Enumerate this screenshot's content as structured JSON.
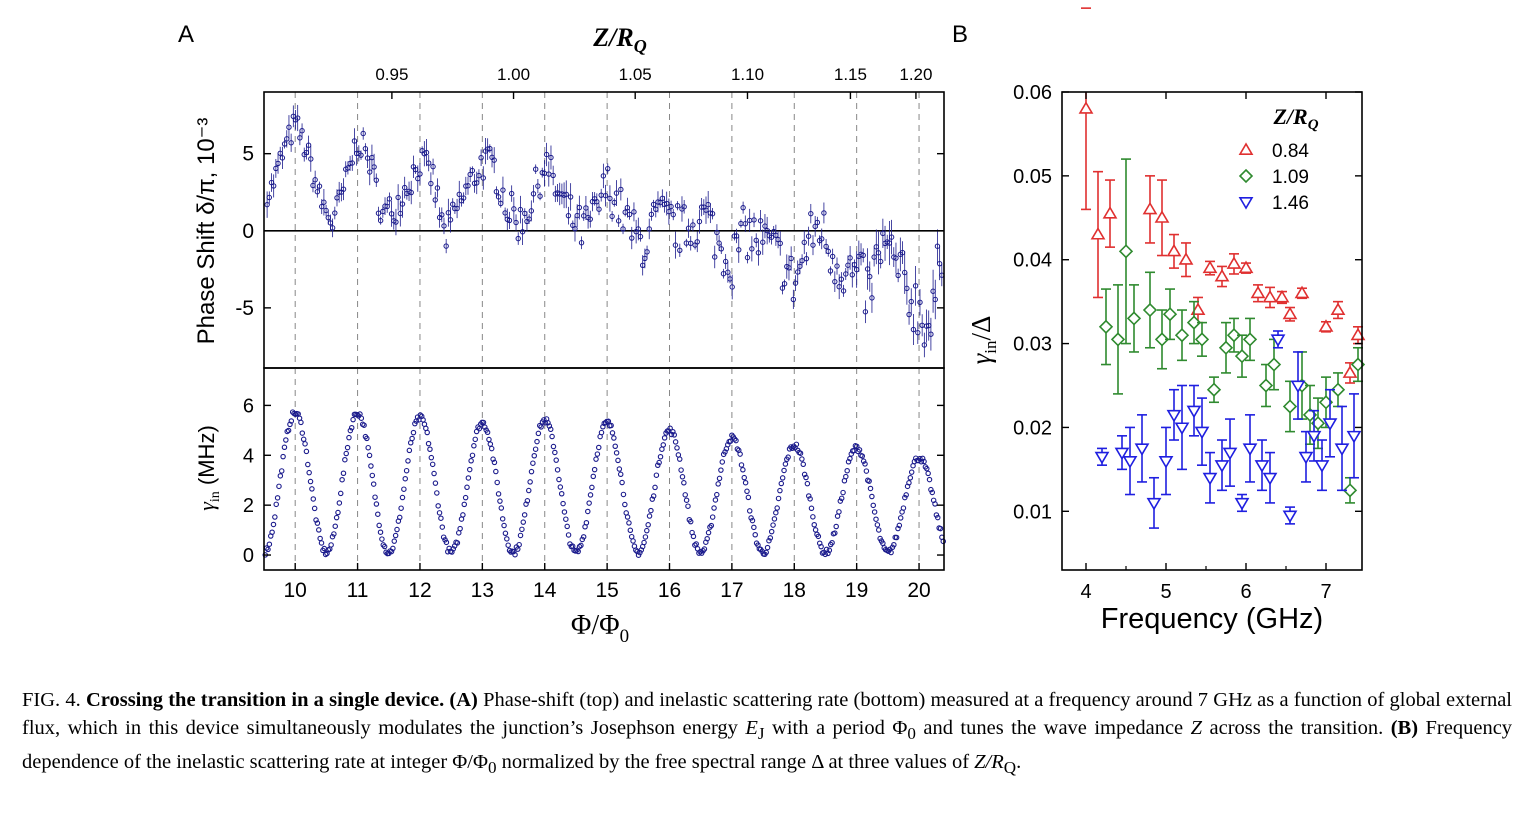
{
  "panels": {
    "a_letter": "A",
    "b_letter": "B"
  },
  "colors": {
    "navy": "#1a1a8c",
    "red": "#e03030",
    "green": "#2f8a2f",
    "blue": "#1f1fe0",
    "grid": "#888888"
  },
  "chart_data": [
    {
      "id": "A-top",
      "type": "scatter",
      "xlabel": "Φ/Φ0",
      "ylabel": "Phase Shift δ/π, 10⁻³",
      "xlim": [
        9.5,
        20.4
      ],
      "ylim": [
        -8.9,
        9.0
      ],
      "yticks": [
        -5,
        0,
        5
      ],
      "yticklabels": [
        "-5",
        "0",
        "5"
      ],
      "top_axis_label": "Z/RQ",
      "top_ticks": [
        {
          "flux": 11.55,
          "label": "0.95"
        },
        {
          "flux": 13.5,
          "label": "1.00"
        },
        {
          "flux": 15.45,
          "label": "1.05"
        },
        {
          "flux": 17.25,
          "label": "1.10"
        },
        {
          "flux": 18.9,
          "label": "1.15"
        },
        {
          "flux": 19.95,
          "label": "1.20"
        }
      ],
      "vlines": [
        10,
        11,
        12,
        13,
        14,
        15,
        16,
        17,
        18,
        19,
        20
      ],
      "series": [
        {
          "color": "#1a1a8c",
          "marker": "circle",
          "x": [
            9.6,
            9.8,
            10.0,
            10.2,
            10.4,
            10.6,
            10.8,
            11.0,
            11.2,
            11.4,
            11.6,
            11.8,
            12.0,
            12.2,
            12.4,
            12.6,
            12.8,
            13.0,
            13.2,
            13.4,
            13.6,
            13.8,
            14.0,
            14.2,
            14.4,
            14.6,
            14.8,
            15.0,
            15.2,
            15.4,
            15.6,
            15.8,
            16.0,
            16.2,
            16.4,
            16.6,
            16.8,
            17.0,
            17.2,
            17.4,
            17.6,
            17.8,
            18.0,
            18.2,
            18.4,
            18.6,
            18.8,
            19.0,
            19.2,
            19.4,
            19.6,
            19.8,
            20.0,
            20.2,
            20.35
          ],
          "y": [
            2.5,
            5.0,
            7.0,
            5.0,
            2.0,
            0.5,
            3.0,
            6.0,
            4.5,
            1.0,
            1.5,
            3.0,
            4.5,
            3.5,
            -0.5,
            1.5,
            3.0,
            4.5,
            4.0,
            1.5,
            0.5,
            2.0,
            4.5,
            2.5,
            1.0,
            0.0,
            1.0,
            3.0,
            1.5,
            0.0,
            -1.0,
            1.0,
            0.5,
            0.0,
            0.5,
            1.0,
            -1.0,
            -2.0,
            0.0,
            -0.5,
            -1.0,
            -2.0,
            -3.5,
            -1.0,
            0.5,
            -1.5,
            -2.5,
            -3.0,
            -4.0,
            -1.0,
            -2.0,
            -4.0,
            -5.0,
            -6.5,
            -1.0
          ]
        }
      ]
    },
    {
      "id": "A-bottom",
      "type": "scatter",
      "xlabel": "Φ/Φ0",
      "ylabel": "γin (MHz)",
      "xlim": [
        9.5,
        20.4
      ],
      "ylim": [
        -0.6,
        7.5
      ],
      "xticks": [
        10,
        11,
        12,
        13,
        14,
        15,
        16,
        17,
        18,
        19,
        20
      ],
      "yticks": [
        0,
        2,
        4,
        6
      ],
      "yticklabels": [
        "0",
        "2",
        "4",
        "6"
      ],
      "peaks": [
        {
          "flux": 10,
          "value": 5.7
        },
        {
          "flux": 11,
          "value": 5.7
        },
        {
          "flux": 12,
          "value": 5.5
        },
        {
          "flux": 13,
          "value": 5.3
        },
        {
          "flux": 14,
          "value": 5.4
        },
        {
          "flux": 15,
          "value": 5.3
        },
        {
          "flux": 16,
          "value": 5.0
        },
        {
          "flux": 17,
          "value": 4.7
        },
        {
          "flux": 18,
          "value": 4.4
        },
        {
          "flux": 19,
          "value": 4.3
        },
        {
          "flux": 20,
          "value": 3.9
        }
      ],
      "minimum_value": 0.1
    },
    {
      "id": "B",
      "type": "scatter",
      "xlabel": "Frequency (GHz)",
      "ylabel": "γin/Δ",
      "xlim": [
        3.7,
        7.45
      ],
      "ylim": [
        0.003,
        0.06
      ],
      "xticks": [
        4,
        5,
        6,
        7
      ],
      "xticklabels": [
        "4",
        "5",
        "6",
        "7"
      ],
      "yticks": [
        0.01,
        0.02,
        0.03,
        0.04,
        0.05,
        0.06
      ],
      "yticklabels": [
        "0.01",
        "0.02",
        "0.03",
        "0.04",
        "0.05",
        "0.06"
      ],
      "legend_title": "Z/RQ",
      "legend_placement": "top-right",
      "series": [
        {
          "name": "0.84",
          "color": "#e03030",
          "marker": "triangle-up",
          "x": [
            4.0,
            4.15,
            4.3,
            4.8,
            4.95,
            5.1,
            5.25,
            5.4,
            5.55,
            5.7,
            5.85,
            6.0,
            6.15,
            6.3,
            6.45,
            6.55,
            6.7,
            7.0,
            7.15,
            7.3,
            7.4
          ],
          "y": [
            0.058,
            0.043,
            0.0455,
            0.046,
            0.045,
            0.041,
            0.04,
            0.034,
            0.039,
            0.038,
            0.0395,
            0.039,
            0.036,
            0.0355,
            0.0355,
            0.0335,
            0.036,
            0.032,
            0.034,
            0.0265,
            0.031
          ],
          "err": [
            0.012,
            0.0075,
            0.004,
            0.004,
            0.0045,
            0.002,
            0.002,
            0.0015,
            0.0008,
            0.0012,
            0.0012,
            0.0006,
            0.001,
            0.0012,
            0.0007,
            0.0008,
            0.0006,
            0.0006,
            0.001,
            0.0012,
            0.001
          ]
        },
        {
          "name": "1.09",
          "color": "#2f8a2f",
          "marker": "diamond",
          "x": [
            4.25,
            4.4,
            4.5,
            4.6,
            4.8,
            4.95,
            5.05,
            5.2,
            5.35,
            5.45,
            5.6,
            5.75,
            5.85,
            5.95,
            6.05,
            6.25,
            6.35,
            6.55,
            6.7,
            6.8,
            6.9,
            7.0,
            7.15,
            7.3,
            7.4
          ],
          "y": [
            0.032,
            0.0305,
            0.041,
            0.033,
            0.034,
            0.0305,
            0.0335,
            0.031,
            0.0325,
            0.0305,
            0.0245,
            0.0295,
            0.031,
            0.0285,
            0.0305,
            0.025,
            0.0275,
            0.0225,
            0.025,
            0.0215,
            0.0205,
            0.023,
            0.0245,
            0.0125,
            0.0275
          ],
          "err": [
            0.0045,
            0.0065,
            0.011,
            0.004,
            0.0045,
            0.0035,
            0.003,
            0.003,
            0.0025,
            0.002,
            0.0015,
            0.003,
            0.002,
            0.0025,
            0.0025,
            0.0025,
            0.003,
            0.003,
            0.004,
            0.0035,
            0.003,
            0.003,
            0.002,
            0.0015,
            0.002
          ]
        },
        {
          "name": "1.46",
          "color": "#1f1fe0",
          "marker": "triangle-down",
          "x": [
            4.2,
            4.45,
            4.55,
            4.7,
            4.85,
            5.0,
            5.1,
            5.2,
            5.35,
            5.45,
            5.55,
            5.7,
            5.8,
            5.95,
            6.05,
            6.2,
            6.3,
            6.4,
            6.55,
            6.65,
            6.75,
            6.85,
            6.95,
            7.05,
            7.2,
            7.35
          ],
          "y": [
            0.0165,
            0.017,
            0.016,
            0.0175,
            0.011,
            0.016,
            0.0215,
            0.02,
            0.022,
            0.0195,
            0.014,
            0.0155,
            0.017,
            0.011,
            0.0175,
            0.0155,
            0.014,
            0.0305,
            0.0095,
            0.025,
            0.0165,
            0.019,
            0.0155,
            0.0205,
            0.0175,
            0.019
          ],
          "err": [
            0.001,
            0.002,
            0.004,
            0.004,
            0.003,
            0.004,
            0.003,
            0.005,
            0.003,
            0.004,
            0.003,
            0.003,
            0.004,
            0.001,
            0.004,
            0.003,
            0.003,
            0.001,
            0.001,
            0.004,
            0.003,
            0.003,
            0.003,
            0.004,
            0.005,
            0.005
          ]
        }
      ]
    }
  ],
  "caption": {
    "fig": "FIG. 4.",
    "title": "Crossing the transition in a single device.",
    "a_ref": "(A)",
    "part1": "Phase-shift (top) and inelastic scattering rate (bottom) measured at a frequency around 7 GHz as a function of global external flux, which in this device simultaneously modulates the junction’s Josephson energy",
    "ej": "E",
    "ej_sub": "J",
    "part2": "with a period Φ",
    "part2_sub": "0",
    "part3": "and tunes the wave impedance",
    "z": "Z",
    "part4": "across the transition.",
    "b_ref": "(B)",
    "part5": "Frequency dependence of the inelastic scattering rate at integer Φ/Φ",
    "part5_sub": "0",
    "part6": "normalized by the free spectral range Δ at three values of",
    "zr": "Z/R",
    "zr_sub": "Q",
    "end": "."
  }
}
